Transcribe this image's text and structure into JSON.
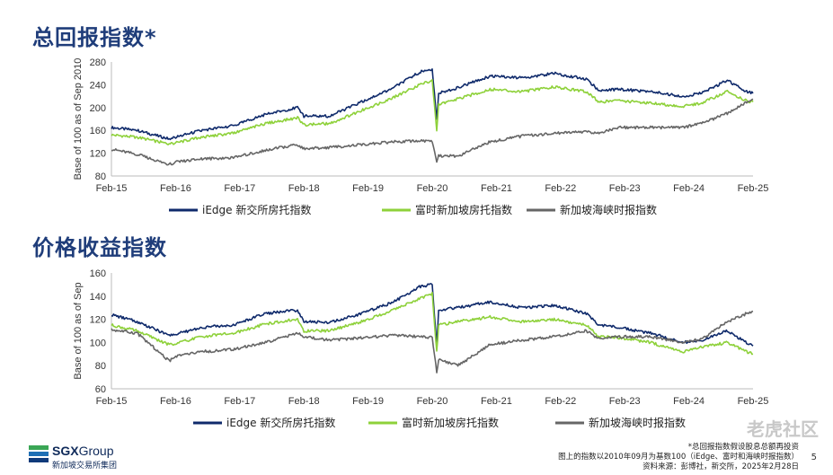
{
  "titles": {
    "top": "总回报指数*",
    "bottom": "价格收益指数"
  },
  "chart_data": [
    {
      "type": "line",
      "title": "总回报指数*",
      "ylabel": "Base of 100 as of Sep 2010",
      "xlabel": "",
      "ylim": [
        80,
        280
      ],
      "yticks": [
        80,
        120,
        160,
        200,
        240,
        280
      ],
      "x_ticks": [
        "Feb-15",
        "Feb-16",
        "Feb-17",
        "Feb-18",
        "Feb-19",
        "Feb-20",
        "Feb-21",
        "Feb-22",
        "Feb-23",
        "Feb-24",
        "Feb-25"
      ],
      "x": [
        2015.1,
        2015.5,
        2016.0,
        2016.1,
        2016.5,
        2017.0,
        2017.5,
        2018.0,
        2018.1,
        2018.5,
        2019.0,
        2019.5,
        2019.9,
        2020.1,
        2020.17,
        2020.2,
        2020.5,
        2021.0,
        2021.5,
        2022.0,
        2022.5,
        2022.7,
        2023.0,
        2023.5,
        2024.0,
        2024.3,
        2024.7,
        2025.0,
        2025.1
      ],
      "series": [
        {
          "name": "iEdge 新交所房托指数",
          "color": "#0f2a6b",
          "values": [
            165,
            160,
            145,
            148,
            160,
            168,
            188,
            200,
            185,
            185,
            210,
            235,
            262,
            268,
            180,
            225,
            235,
            255,
            252,
            260,
            250,
            230,
            232,
            228,
            220,
            225,
            248,
            228,
            225
          ]
        },
        {
          "name": "富时新加坡房托指数",
          "color": "#8ed13a",
          "values": [
            152,
            148,
            136,
            138,
            148,
            155,
            172,
            182,
            170,
            172,
            195,
            218,
            240,
            248,
            160,
            205,
            215,
            232,
            228,
            236,
            228,
            210,
            212,
            208,
            202,
            208,
            228,
            212,
            210
          ]
        },
        {
          "name": "新加坡海峡时报指数",
          "color": "#666666",
          "values": [
            127,
            118,
            100,
            104,
            110,
            112,
            125,
            135,
            128,
            130,
            135,
            140,
            142,
            140,
            105,
            115,
            115,
            140,
            150,
            155,
            158,
            155,
            165,
            165,
            165,
            172,
            190,
            210,
            215
          ]
        }
      ]
    },
    {
      "type": "line",
      "title": "价格收益指数",
      "ylabel": "Base of 100 as of Sep",
      "xlabel": "",
      "ylim": [
        60,
        160
      ],
      "yticks": [
        60,
        80,
        100,
        120,
        140,
        160
      ],
      "x_ticks": [
        "Feb-15",
        "Feb-16",
        "Feb-17",
        "Feb-18",
        "Feb-19",
        "Feb-20",
        "Feb-21",
        "Feb-22",
        "Feb-23",
        "Feb-24",
        "Feb-25"
      ],
      "x": [
        2015.1,
        2015.5,
        2016.0,
        2016.1,
        2016.5,
        2017.0,
        2017.5,
        2018.0,
        2018.1,
        2018.5,
        2019.0,
        2019.5,
        2019.9,
        2020.1,
        2020.17,
        2020.2,
        2020.5,
        2021.0,
        2021.5,
        2022.0,
        2022.5,
        2022.7,
        2023.0,
        2023.5,
        2024.0,
        2024.3,
        2024.7,
        2025.0,
        2025.1
      ],
      "series": [
        {
          "name": "iEdge 新交所房托指数",
          "color": "#0f2a6b",
          "values": [
            124,
            118,
            106,
            107,
            113,
            115,
            125,
            128,
            118,
            117,
            125,
            135,
            148,
            150,
            98,
            128,
            130,
            135,
            130,
            132,
            125,
            115,
            113,
            108,
            100,
            102,
            110,
            100,
            97
          ]
        },
        {
          "name": "富时新加坡房托指数",
          "color": "#8ed13a",
          "values": [
            115,
            110,
            98,
            99,
            105,
            108,
            116,
            120,
            110,
            110,
            118,
            128,
            138,
            142,
            92,
            115,
            118,
            122,
            118,
            120,
            115,
            105,
            104,
            100,
            92,
            96,
            100,
            92,
            90
          ]
        },
        {
          "name": "新加坡海峡时报指数",
          "color": "#666666",
          "values": [
            111,
            108,
            84,
            88,
            92,
            94,
            100,
            108,
            105,
            102,
            104,
            106,
            105,
            104,
            75,
            85,
            80,
            98,
            102,
            105,
            110,
            103,
            105,
            105,
            100,
            103,
            118,
            125,
            127
          ]
        }
      ]
    }
  ],
  "legend": [
    "iEdge 新交所房托指数",
    "富时新加坡房托指数",
    "新加坡海峡时报指数"
  ],
  "footer": {
    "logo_name_bold": "SGX",
    "logo_name_rest": "Group",
    "logo_sub": "新加坡交易所集团",
    "note1": "*总回报指数假设股息总额再投资",
    "note2": "图上的指数以2010年09月为基数100（iEdge、富时和海峡时报指数）",
    "note3": "资料来源：彭博社，新交所，2025年2月28日",
    "page": "5",
    "watermark": "老虎社区"
  }
}
